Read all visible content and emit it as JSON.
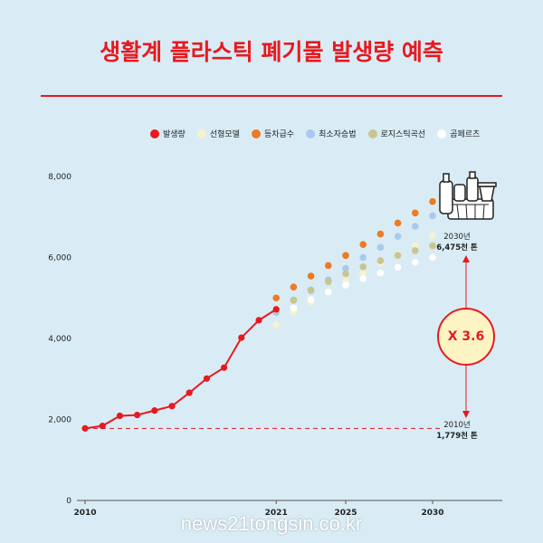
{
  "title": "생활계 플라스틱 폐기물 발생량 예측",
  "watermark": "news21tongsin.co.kr",
  "legend": [
    {
      "label": "발생량",
      "color": "#e8191f"
    },
    {
      "label": "선형모델",
      "color": "#f5f2cf"
    },
    {
      "label": "등차급수",
      "color": "#ee7a22"
    },
    {
      "label": "최소자승법",
      "color": "#a9c9ee"
    },
    {
      "label": "로지스틱곡선",
      "color": "#c9c591"
    },
    {
      "label": "곰페르츠",
      "color": "#ffffff"
    }
  ],
  "annotations": {
    "year_2030": "2030년",
    "value_2030": "6,475천 톤",
    "year_2010": "2010년",
    "value_2010": "1,779천 톤",
    "multiplier": "X 3.6"
  },
  "chart_data": {
    "type": "scatter",
    "title": "생활계 플라스틱 폐기물 발생량 예측",
    "xlabel": "",
    "ylabel": "",
    "xlim": [
      2010,
      2030
    ],
    "ylim": [
      0,
      8000
    ],
    "x_ticks": [
      "2010",
      "2021",
      "2025",
      "2030"
    ],
    "y_ticks": [
      "0",
      "2,000",
      "4,000",
      "6,000",
      "8,000"
    ],
    "baseline_2010": 1779,
    "series": [
      {
        "name": "발생량",
        "color": "#e8191f",
        "style": "line",
        "x": [
          2010,
          2011,
          2012,
          2013,
          2014,
          2015,
          2016,
          2017,
          2018,
          2019,
          2020,
          2021
        ],
        "values": [
          1779,
          1840,
          2090,
          2110,
          2220,
          2330,
          2660,
          3010,
          3280,
          4020,
          4450,
          4720
        ]
      },
      {
        "name": "선형모델",
        "color": "#f5f2cf",
        "style": "dots",
        "x": [
          2021,
          2022,
          2023,
          2024,
          2025,
          2026,
          2027,
          2028,
          2029,
          2030
        ],
        "values": [
          4330,
          4650,
          4900,
          5150,
          5420,
          5620,
          5850,
          6080,
          6300,
          6540
        ]
      },
      {
        "name": "등차급수",
        "color": "#ee7a22",
        "style": "dots",
        "x": [
          2021,
          2022,
          2023,
          2024,
          2025,
          2026,
          2027,
          2028,
          2029,
          2030
        ],
        "values": [
          5000,
          5270,
          5540,
          5800,
          6050,
          6320,
          6580,
          6850,
          7100,
          7380
        ]
      },
      {
        "name": "최소자승법",
        "color": "#a9c9ee",
        "style": "dots",
        "x": [
          2021,
          2022,
          2023,
          2024,
          2025,
          2026,
          2027,
          2028,
          2029,
          2030
        ],
        "values": [
          4640,
          4950,
          5200,
          5450,
          5730,
          6000,
          6250,
          6520,
          6770,
          7030
        ]
      },
      {
        "name": "로지스틱곡선",
        "color": "#c9c591",
        "style": "dots",
        "x": [
          2021,
          2022,
          2023,
          2024,
          2025,
          2026,
          2027,
          2028,
          2029,
          2030
        ],
        "values": [
          4700,
          4940,
          5180,
          5400,
          5600,
          5770,
          5920,
          6050,
          6170,
          6290
        ]
      },
      {
        "name": "곰페르츠",
        "color": "#ffffff",
        "style": "dots",
        "x": [
          2021,
          2022,
          2023,
          2024,
          2025,
          2026,
          2027,
          2028,
          2029,
          2030
        ],
        "values": [
          4520,
          4750,
          4960,
          5150,
          5320,
          5480,
          5620,
          5760,
          5880,
          6000
        ]
      }
    ]
  }
}
